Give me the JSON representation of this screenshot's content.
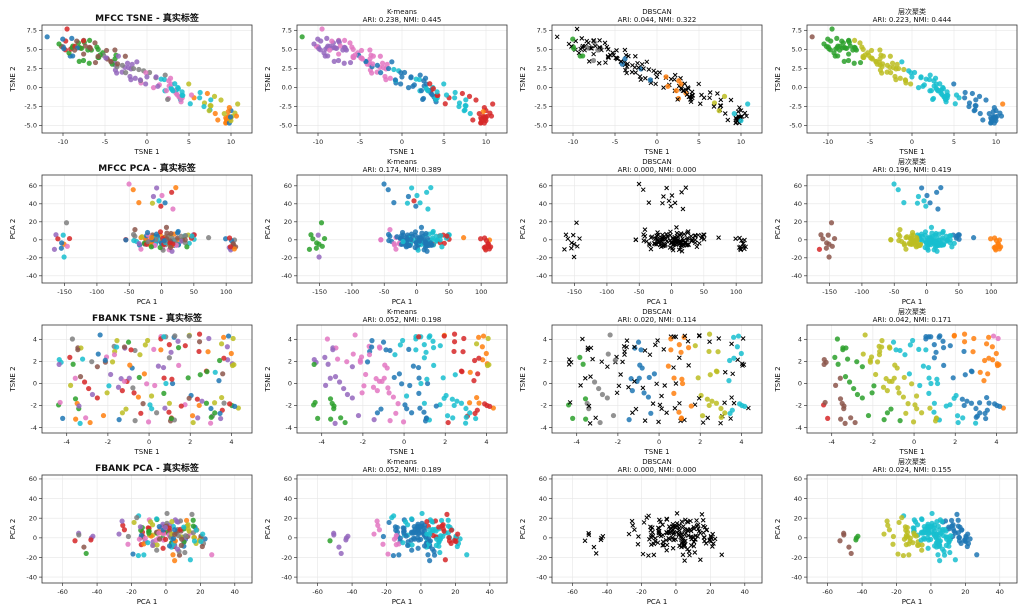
{
  "figure": {
    "n_points_per_panel": 160,
    "palette": [
      "#1f77b4",
      "#ff7f0e",
      "#2ca02c",
      "#d62728",
      "#9467bd",
      "#8c564b",
      "#e377c2",
      "#7f7f7f",
      "#bcbd22",
      "#17becf"
    ],
    "noise_color": "#000000"
  },
  "chart_data": [
    {
      "id": "r0c0",
      "type": "scatter",
      "row": "MFCC TSNE",
      "method": "truth",
      "title": "MFCC TSNE - 真实标签",
      "subtitle": "",
      "xlabel": "TSNE 1",
      "ylabel": "TSNE 2",
      "xlim": [
        -12.5,
        12.5
      ],
      "ylim": [
        -6,
        8.2
      ],
      "xticks": [
        -10,
        -5,
        0,
        5,
        10
      ],
      "yticks": [
        -5.0,
        -2.5,
        0.0,
        2.5,
        5.0,
        7.5
      ],
      "seed": 11
    },
    {
      "id": "r0c1",
      "type": "scatter",
      "row": "MFCC TSNE",
      "method": "kmeans",
      "title": "K-means",
      "subtitle": "ARI: 0.238, NMI: 0.445",
      "xlabel": "TSNE 1",
      "ylabel": "TSNE 2",
      "xlim": [
        -12.5,
        12.5
      ],
      "ylim": [
        -6,
        8.2
      ],
      "xticks": [
        -10,
        -5,
        0,
        5,
        10
      ],
      "yticks": [
        -5.0,
        -2.5,
        0.0,
        2.5,
        5.0,
        7.5
      ],
      "seed": 11
    },
    {
      "id": "r0c2",
      "type": "scatter",
      "row": "MFCC TSNE",
      "method": "dbscan",
      "title": "DBSCAN",
      "subtitle": "ARI: 0.044, NMI: 0.322",
      "xlabel": "TSNE 1",
      "ylabel": "TSNE 2",
      "xlim": [
        -12.5,
        12.5
      ],
      "ylim": [
        -6,
        8.2
      ],
      "xticks": [
        -10,
        -5,
        0,
        5,
        10
      ],
      "yticks": [
        -5.0,
        -2.5,
        0.0,
        2.5,
        5.0,
        7.5
      ],
      "seed": 11
    },
    {
      "id": "r0c3",
      "type": "scatter",
      "row": "MFCC TSNE",
      "method": "hier",
      "title": "层次聚类",
      "subtitle": "ARI: 0.223, NMI: 0.444",
      "xlabel": "TSNE 1",
      "ylabel": "TSNE 2",
      "xlim": [
        -12.5,
        12.5
      ],
      "ylim": [
        -6,
        8.2
      ],
      "xticks": [
        -10,
        -5,
        0,
        5,
        10
      ],
      "yticks": [
        -5.0,
        -2.5,
        0.0,
        2.5,
        5.0,
        7.5
      ],
      "seed": 11
    },
    {
      "id": "r1c0",
      "type": "scatter",
      "row": "MFCC PCA",
      "method": "truth",
      "title": "MFCC PCA - 真实标签",
      "subtitle": "",
      "xlabel": "PCA 1",
      "ylabel": "PCA 2",
      "xlim": [
        -185,
        140
      ],
      "ylim": [
        -48,
        72
      ],
      "xticks": [
        -150,
        -100,
        -50,
        0,
        50,
        100
      ],
      "yticks": [
        -40,
        -20,
        0,
        20,
        40,
        60
      ],
      "seed": 23
    },
    {
      "id": "r1c1",
      "type": "scatter",
      "row": "MFCC PCA",
      "method": "kmeans",
      "title": "K-means",
      "subtitle": "ARI: 0.174, NMI: 0.389",
      "xlabel": "PCA 1",
      "ylabel": "PCA 2",
      "xlim": [
        -185,
        140
      ],
      "ylim": [
        -48,
        72
      ],
      "xticks": [
        -150,
        -100,
        -50,
        0,
        50,
        100
      ],
      "yticks": [
        -40,
        -20,
        0,
        20,
        40,
        60
      ],
      "seed": 23
    },
    {
      "id": "r1c2",
      "type": "scatter",
      "row": "MFCC PCA",
      "method": "dbscan",
      "title": "DBSCAN",
      "subtitle": "ARI: 0.000, NMI: 0.000",
      "xlabel": "PCA 1",
      "ylabel": "PCA 2",
      "xlim": [
        -185,
        140
      ],
      "ylim": [
        -48,
        72
      ],
      "xticks": [
        -150,
        -100,
        -50,
        0,
        50,
        100
      ],
      "yticks": [
        -40,
        -20,
        0,
        20,
        40,
        60
      ],
      "seed": 23
    },
    {
      "id": "r1c3",
      "type": "scatter",
      "row": "MFCC PCA",
      "method": "hier",
      "title": "层次聚类",
      "subtitle": "ARI: 0.196, NMI: 0.419",
      "xlabel": "PCA 1",
      "ylabel": "PCA 2",
      "xlim": [
        -185,
        140
      ],
      "ylim": [
        -48,
        72
      ],
      "xticks": [
        -150,
        -100,
        -50,
        0,
        50,
        100
      ],
      "yticks": [
        -40,
        -20,
        0,
        20,
        40,
        60
      ],
      "seed": 23
    },
    {
      "id": "r2c0",
      "type": "scatter",
      "row": "FBANK TSNE",
      "method": "truth",
      "title": "FBANK TSNE - 真实标签",
      "subtitle": "",
      "xlabel": "TSNE 1",
      "ylabel": "TSNE 2",
      "xlim": [
        -5.2,
        5.0
      ],
      "ylim": [
        -4.5,
        5.3
      ],
      "xticks": [
        -4,
        -2,
        0,
        2,
        4
      ],
      "yticks": [
        -4,
        -2,
        0,
        2,
        4
      ],
      "seed": 37
    },
    {
      "id": "r2c1",
      "type": "scatter",
      "row": "FBANK TSNE",
      "method": "kmeans",
      "title": "K-means",
      "subtitle": "ARI: 0.052, NMI: 0.198",
      "xlabel": "TSNE 1",
      "ylabel": "TSNE 2",
      "xlim": [
        -5.2,
        5.0
      ],
      "ylim": [
        -4.5,
        5.3
      ],
      "xticks": [
        -4,
        -2,
        0,
        2,
        4
      ],
      "yticks": [
        -4,
        -2,
        0,
        2,
        4
      ],
      "seed": 37
    },
    {
      "id": "r2c2",
      "type": "scatter",
      "row": "FBANK TSNE",
      "method": "dbscan",
      "title": "DBSCAN",
      "subtitle": "ARI: 0.020, NMI: 0.114",
      "xlabel": "TSNE 1",
      "ylabel": "TSNE 2",
      "xlim": [
        -5.2,
        5.0
      ],
      "ylim": [
        -4.5,
        5.3
      ],
      "xticks": [
        -4,
        -2,
        0,
        2,
        4
      ],
      "yticks": [
        -4,
        -2,
        0,
        2,
        4
      ],
      "seed": 37
    },
    {
      "id": "r2c3",
      "type": "scatter",
      "row": "FBANK TSNE",
      "method": "hier",
      "title": "层次聚类",
      "subtitle": "ARI: 0.042, NMI: 0.171",
      "xlabel": "TSNE 1",
      "ylabel": "TSNE 2",
      "xlim": [
        -5.2,
        5.0
      ],
      "ylim": [
        -4.5,
        5.3
      ],
      "xticks": [
        -4,
        -2,
        0,
        2,
        4
      ],
      "yticks": [
        -4,
        -2,
        0,
        2,
        4
      ],
      "seed": 37
    },
    {
      "id": "r3c0",
      "type": "scatter",
      "row": "FBANK PCA",
      "method": "truth",
      "title": "FBANK PCA - 真实标签",
      "subtitle": "",
      "xlabel": "PCA 1",
      "ylabel": "PCA 2",
      "xlim": [
        -72,
        50
      ],
      "ylim": [
        -46,
        64
      ],
      "xticks": [
        -60,
        -40,
        -20,
        0,
        20,
        40
      ],
      "yticks": [
        -40,
        -20,
        0,
        20,
        40,
        60
      ],
      "seed": 53
    },
    {
      "id": "r3c1",
      "type": "scatter",
      "row": "FBANK PCA",
      "method": "kmeans",
      "title": "K-means",
      "subtitle": "ARI: 0.052, NMI: 0.189",
      "xlabel": "PCA 1",
      "ylabel": "PCA 2",
      "xlim": [
        -72,
        50
      ],
      "ylim": [
        -46,
        64
      ],
      "xticks": [
        -60,
        -40,
        -20,
        0,
        20,
        40
      ],
      "yticks": [
        -40,
        -20,
        0,
        20,
        40,
        60
      ],
      "seed": 53
    },
    {
      "id": "r3c2",
      "type": "scatter",
      "row": "FBANK PCA",
      "method": "dbscan",
      "title": "DBSCAN",
      "subtitle": "ARI: 0.000, NMI: 0.000",
      "xlabel": "PCA 1",
      "ylabel": "PCA 2",
      "xlim": [
        -72,
        50
      ],
      "ylim": [
        -46,
        64
      ],
      "xticks": [
        -60,
        -40,
        -20,
        0,
        20,
        40
      ],
      "yticks": [
        -40,
        -20,
        0,
        20,
        40,
        60
      ],
      "seed": 53
    },
    {
      "id": "r3c3",
      "type": "scatter",
      "row": "FBANK PCA",
      "method": "hier",
      "title": "层次聚类",
      "subtitle": "ARI: 0.024, NMI: 0.155",
      "xlabel": "PCA 1",
      "ylabel": "PCA 2",
      "xlim": [
        -72,
        50
      ],
      "ylim": [
        -46,
        64
      ],
      "xticks": [
        -60,
        -40,
        -20,
        0,
        20,
        40
      ],
      "yticks": [
        -40,
        -20,
        0,
        20,
        40,
        60
      ],
      "seed": 53
    }
  ]
}
